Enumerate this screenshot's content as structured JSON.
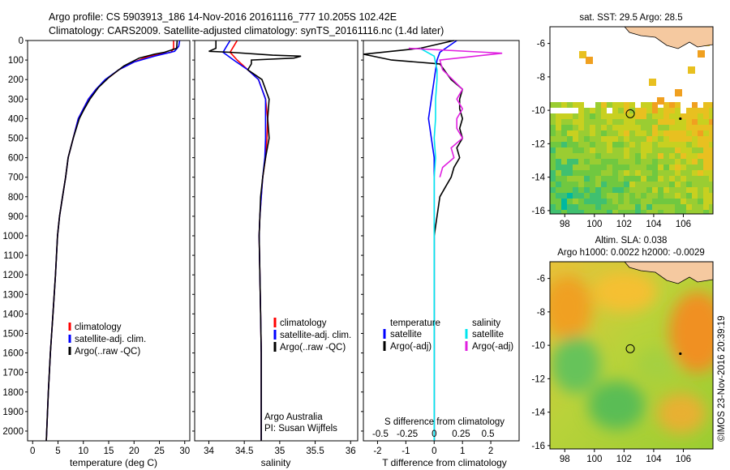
{
  "header": {
    "line1": "Argo profile: CS 5903913_186 14-Nov-2016 20161116_777 10.205S 102.42E",
    "line2": "Climatology: CARS2009. Satellite-adjusted climatology: synTS_20161116.nc (1.4d later)"
  },
  "colors": {
    "climatology": "#ff0000",
    "satellite": "#0000ff",
    "argo": "#000000",
    "sat_salinity": "#00e5ee",
    "argo_salinity": "#e020e0"
  },
  "chart_data": [
    {
      "id": "temperature",
      "type": "line",
      "xlabel": "temperature (deg C)",
      "xlim": [
        -1,
        31
      ],
      "xticks": [
        0,
        5,
        10,
        15,
        20,
        25,
        30
      ],
      "ylim": [
        2050,
        0
      ],
      "yticks": [
        0,
        100,
        200,
        300,
        400,
        500,
        600,
        700,
        800,
        900,
        1000,
        1100,
        1200,
        1300,
        1400,
        1500,
        1600,
        1700,
        1800,
        1900,
        2000
      ],
      "legend": {
        "position": "middle-left",
        "entries": [
          "climatology",
          "satellite-adj. clim.",
          "Argo(..raw -QC)"
        ]
      },
      "series": [
        {
          "name": "climatology",
          "color": "#ff0000",
          "points": [
            [
              27.8,
              0
            ],
            [
              27.8,
              40
            ],
            [
              27.3,
              60
            ],
            [
              23,
              80
            ],
            [
              20,
              110
            ],
            [
              17,
              150
            ],
            [
              14.5,
              200
            ],
            [
              12.5,
              250
            ],
            [
              11,
              300
            ],
            [
              10,
              350
            ],
            [
              9,
              400
            ],
            [
              8,
              500
            ],
            [
              7,
              600
            ],
            [
              6.5,
              700
            ],
            [
              5.9,
              800
            ],
            [
              5.3,
              900
            ],
            [
              4.9,
              1000
            ],
            [
              4.5,
              1200
            ],
            [
              4,
              1400
            ],
            [
              3.5,
              1600
            ],
            [
              3.1,
              1800
            ],
            [
              2.7,
              2050
            ]
          ]
        },
        {
          "name": "satellite-adj. clim.",
          "color": "#0000ff",
          "points": [
            [
              29,
              0
            ],
            [
              28.8,
              30
            ],
            [
              28,
              55
            ],
            [
              24,
              80
            ],
            [
              20,
              110
            ],
            [
              17,
              150
            ],
            [
              14.3,
              200
            ],
            [
              12.5,
              250
            ],
            [
              11,
              300
            ],
            [
              10,
              350
            ],
            [
              9,
              400
            ],
            [
              8,
              500
            ],
            [
              7,
              600
            ],
            [
              6.5,
              700
            ],
            [
              5.9,
              800
            ],
            [
              5.3,
              900
            ],
            [
              4.9,
              1000
            ],
            [
              4.5,
              1200
            ],
            [
              4,
              1400
            ],
            [
              3.5,
              1600
            ],
            [
              3.1,
              1800
            ],
            [
              2.7,
              2050
            ]
          ]
        },
        {
          "name": "Argo(..raw -QC)",
          "color": "#000000",
          "points": [
            [
              28.5,
              0
            ],
            [
              28.4,
              40
            ],
            [
              26,
              60
            ],
            [
              24,
              70
            ],
            [
              21,
              90
            ],
            [
              18,
              130
            ],
            [
              15,
              190
            ],
            [
              13,
              240
            ],
            [
              11.3,
              300
            ],
            [
              10.2,
              350
            ],
            [
              9.2,
              400
            ],
            [
              8,
              500
            ],
            [
              7,
              600
            ],
            [
              6.5,
              700
            ],
            [
              5.9,
              800
            ],
            [
              5.3,
              900
            ],
            [
              4.9,
              1000
            ],
            [
              4.5,
              1200
            ],
            [
              4,
              1400
            ],
            [
              3.5,
              1600
            ],
            [
              3.1,
              1800
            ],
            [
              2.7,
              2050
            ]
          ]
        }
      ]
    },
    {
      "id": "salinity",
      "type": "line",
      "xlabel": "salinity",
      "xlim": [
        33.8,
        36.1
      ],
      "xticks": [
        34,
        34.5,
        35,
        35.5,
        36
      ],
      "ylim": [
        2050,
        0
      ],
      "legend": {
        "position": "middle-right",
        "entries": [
          "climatology",
          "satellite-adj. clim.",
          "Argo(..raw -QC)"
        ]
      },
      "annotations": [
        "Argo Australia",
        "PI: Susan Wijffels"
      ],
      "series": [
        {
          "name": "climatology",
          "color": "#ff0000",
          "points": [
            [
              34.4,
              0
            ],
            [
              34.35,
              30
            ],
            [
              34.3,
              60
            ],
            [
              34.4,
              100
            ],
            [
              34.55,
              150
            ],
            [
              34.7,
              200
            ],
            [
              34.8,
              300
            ],
            [
              34.83,
              400
            ],
            [
              34.82,
              500
            ],
            [
              34.8,
              600
            ],
            [
              34.76,
              700
            ],
            [
              34.74,
              800
            ],
            [
              34.72,
              900
            ],
            [
              34.71,
              1000
            ],
            [
              34.72,
              1200
            ],
            [
              34.73,
              1400
            ],
            [
              34.74,
              1600
            ],
            [
              34.74,
              1800
            ],
            [
              34.74,
              2050
            ]
          ]
        },
        {
          "name": "satellite-adj. clim.",
          "color": "#0000ff",
          "points": [
            [
              34.3,
              0
            ],
            [
              34.25,
              30
            ],
            [
              34.2,
              60
            ],
            [
              34.35,
              100
            ],
            [
              34.55,
              150
            ],
            [
              34.7,
              200
            ],
            [
              34.8,
              300
            ],
            [
              34.8,
              400
            ],
            [
              34.8,
              500
            ],
            [
              34.79,
              600
            ],
            [
              34.76,
              700
            ],
            [
              34.74,
              800
            ],
            [
              34.72,
              900
            ],
            [
              34.71,
              1000
            ],
            [
              34.72,
              1200
            ],
            [
              34.73,
              1400
            ],
            [
              34.74,
              1600
            ],
            [
              34.74,
              1800
            ],
            [
              34.74,
              2050
            ]
          ]
        },
        {
          "name": "Argo(..raw -QC)",
          "color": "#000000",
          "points": [
            [
              34.1,
              0
            ],
            [
              34.1,
              40
            ],
            [
              34.0,
              55
            ],
            [
              34.3,
              60
            ],
            [
              34.9,
              75
            ],
            [
              35.3,
              80
            ],
            [
              35.2,
              90
            ],
            [
              34.6,
              100
            ],
            [
              34.6,
              120
            ],
            [
              34.55,
              150
            ],
            [
              34.75,
              200
            ],
            [
              34.85,
              300
            ],
            [
              34.83,
              400
            ],
            [
              34.85,
              500
            ],
            [
              34.8,
              600
            ],
            [
              34.78,
              650
            ],
            [
              34.76,
              700
            ],
            [
              34.73,
              800
            ],
            [
              34.72,
              900
            ],
            [
              34.71,
              1000
            ],
            [
              34.72,
              1200
            ],
            [
              34.73,
              1400
            ],
            [
              34.74,
              1600
            ],
            [
              34.74,
              1800
            ],
            [
              34.74,
              2050
            ]
          ]
        }
      ]
    },
    {
      "id": "difference",
      "type": "line",
      "xlabel": "T difference from climatology",
      "x2label": "S difference from climatology",
      "xlim": [
        -2.5,
        3
      ],
      "xticks": [
        -2,
        -1,
        0,
        1,
        2
      ],
      "x2ticks_labels": [
        "-0.5",
        "-0.25",
        "0",
        "0.25",
        "0.5"
      ],
      "ylim": [
        2050,
        0
      ],
      "legend": {
        "position": "middle",
        "entries": [
          "temperature",
          "satellite",
          "Argo(-adj)",
          "salinity",
          "satellite",
          "Argo(-adj)"
        ]
      },
      "series": [
        {
          "name": "temperature satellite",
          "color": "#0000ff",
          "points": [
            [
              0.8,
              0
            ],
            [
              0.2,
              60
            ],
            [
              0.1,
              100
            ],
            [
              0,
              200
            ],
            [
              -0.1,
              300
            ],
            [
              -0.2,
              400
            ],
            [
              -0.1,
              500
            ],
            [
              0,
              600
            ],
            [
              0,
              800
            ],
            [
              0,
              1000
            ],
            [
              0,
              1500
            ],
            [
              0,
              2050
            ]
          ]
        },
        {
          "name": "temperature Argo(-adj)",
          "color": "#000000",
          "points": [
            [
              0.7,
              0
            ],
            [
              -0.5,
              40
            ],
            [
              -2.5,
              70
            ],
            [
              -1.5,
              100
            ],
            [
              0.2,
              120
            ],
            [
              0.6,
              200
            ],
            [
              1.0,
              250
            ],
            [
              0.9,
              300
            ],
            [
              0.9,
              350
            ],
            [
              1.0,
              400
            ],
            [
              0.9,
              450
            ],
            [
              1.0,
              500
            ],
            [
              0.8,
              550
            ],
            [
              0.9,
              600
            ],
            [
              0.7,
              650
            ],
            [
              0.6,
              700
            ],
            [
              0.4,
              750
            ],
            [
              0.2,
              800
            ],
            [
              0.1,
              900
            ],
            [
              0,
              1000
            ],
            [
              0,
              1300
            ],
            [
              0,
              1500
            ],
            [
              0,
              2050
            ]
          ]
        },
        {
          "name": "salinity satellite",
          "color": "#00e5ee",
          "points": [
            [
              -0.5,
              40
            ],
            [
              0,
              80
            ],
            [
              0.1,
              150
            ],
            [
              0.1,
              200
            ],
            [
              0.05,
              300
            ],
            [
              0.05,
              400
            ],
            [
              0,
              500
            ],
            [
              0.05,
              600
            ],
            [
              0,
              700
            ],
            [
              0,
              900
            ],
            [
              0,
              1500
            ],
            [
              0,
              2050
            ]
          ]
        },
        {
          "name": "salinity Argo(-adj)",
          "color": "#e020e0",
          "points": [
            [
              -0.9,
              40
            ],
            [
              1.8,
              60
            ],
            [
              2.4,
              65
            ],
            [
              0.2,
              100
            ],
            [
              0.3,
              150
            ],
            [
              1.0,
              250
            ],
            [
              0.8,
              300
            ],
            [
              1.0,
              350
            ],
            [
              0.8,
              400
            ],
            [
              0.8,
              450
            ],
            [
              1.0,
              500
            ],
            [
              0.6,
              550
            ],
            [
              0.7,
              600
            ],
            [
              0.3,
              650
            ],
            [
              0.2,
              700
            ]
          ]
        }
      ]
    },
    {
      "id": "map-sst",
      "type": "heatmap",
      "title": "sat. SST: 29.5  Argo: 28.5",
      "xticks": [
        98,
        100,
        102,
        104,
        106
      ],
      "yticks": [
        -6,
        -8,
        -10,
        -12,
        -14,
        -16
      ],
      "xlim": [
        97,
        108
      ],
      "ylim": [
        -16.2,
        -5
      ],
      "argo_position": [
        102.42,
        -10.205
      ]
    },
    {
      "id": "map-sla",
      "type": "heatmap",
      "title": "Altim. SLA: 0.038",
      "subtitle": "Argo h1000: 0.0022  h2000: -0.0029",
      "xticks": [
        98,
        100,
        102,
        104,
        106
      ],
      "yticks": [
        -6,
        -8,
        -10,
        -12,
        -14,
        -16
      ],
      "xlim": [
        97,
        108
      ],
      "ylim": [
        -16.2,
        -5
      ],
      "argo_position": [
        102.42,
        -10.205
      ]
    }
  ],
  "footer": {
    "credit": "©IMOS 23-Nov-2016 20:39:19"
  }
}
